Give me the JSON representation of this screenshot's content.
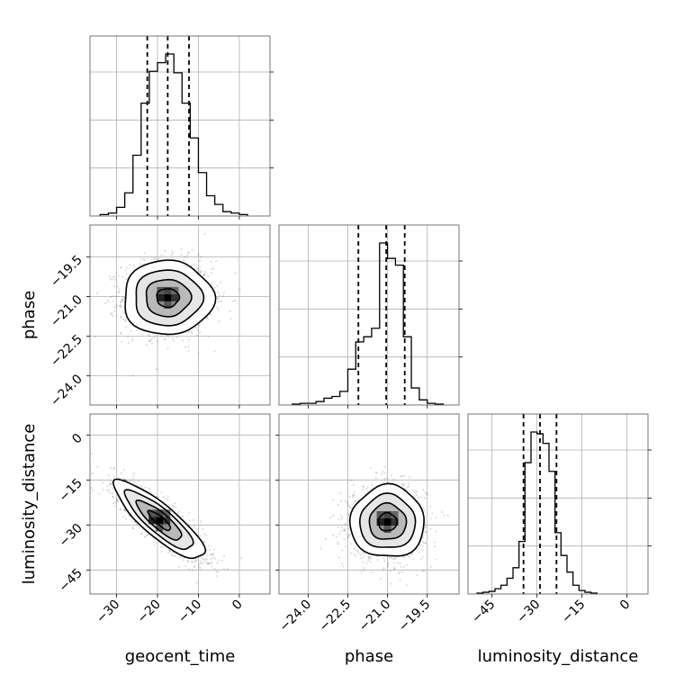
{
  "chart_data": {
    "type": "corner",
    "parameters": [
      "geocent_time",
      "phase",
      "luminosity_distance"
    ],
    "axis_labels": [
      "geocent_time",
      "phase",
      "luminosity_distance"
    ],
    "ranges": {
      "geocent_time": [
        -36.5,
        7.5
      ],
      "phase": [
        -25.1,
        -18.3
      ],
      "luminosity_distance": [
        -53,
        7
      ]
    },
    "ticks": {
      "geocent_time": [
        -30,
        -20,
        -10,
        0
      ],
      "phase": [
        -24.0,
        -22.5,
        -21.0,
        -19.5
      ],
      "luminosity_distance": [
        -45,
        -30,
        -15,
        0
      ]
    },
    "tick_labels": {
      "geocent_time": [
        "−30",
        "−20",
        "−10",
        "0"
      ],
      "phase": [
        "−24.0",
        "−22.5",
        "−21.0",
        "−19.5"
      ],
      "luminosity_distance": [
        "−45",
        "−30",
        "−15",
        "0"
      ]
    },
    "grid": true,
    "histograms": [
      {
        "parameter": "geocent_time",
        "bin_edges": [
          -34,
          -32,
          -30,
          -28,
          -26,
          -24,
          -22,
          -20,
          -18,
          -16,
          -14,
          -12,
          -10,
          -8,
          -6,
          -4,
          -2,
          0,
          2
        ],
        "counts": [
          1,
          2,
          6,
          16,
          42,
          78,
          100,
          106,
          112,
          99,
          78,
          54,
          30,
          14,
          8,
          3,
          2,
          1
        ],
        "quantiles": [
          -22.5,
          -17.5,
          -12.3
        ]
      },
      {
        "parameter": "phase",
        "bin_edges": [
          -24.6,
          -24.3,
          -24.0,
          -23.7,
          -23.4,
          -23.1,
          -22.8,
          -22.5,
          -22.2,
          -21.9,
          -21.6,
          -21.3,
          -21.0,
          -20.7,
          -20.4,
          -20.1,
          -19.8,
          -19.5,
          -19.2,
          -18.9
        ],
        "counts": [
          0.5,
          1,
          1,
          2,
          4,
          5,
          8,
          21,
          37,
          40,
          45,
          95,
          86,
          82,
          40,
          10,
          3,
          1,
          0.5
        ],
        "quantiles": [
          -22.1,
          -21.05,
          -20.35
        ]
      },
      {
        "parameter": "luminosity_distance",
        "bin_edges": [
          -50,
          -48,
          -46,
          -44,
          -42,
          -40,
          -38,
          -36,
          -34,
          -32,
          -30,
          -28,
          -26,
          -24,
          -22,
          -20,
          -18,
          -16,
          -14,
          -12,
          -10
        ],
        "counts": [
          1,
          2,
          3,
          6,
          10,
          18,
          30,
          60,
          150,
          185,
          183,
          172,
          140,
          70,
          44,
          25,
          10,
          4,
          2,
          1
        ],
        "quantiles": [
          -34.5,
          -29.0,
          -23.5
        ]
      }
    ],
    "pairs": [
      {
        "x": "geocent_time",
        "y": "phase",
        "center": [
          -17.5,
          -21.05
        ],
        "sigma": [
          5.5,
          0.7
        ],
        "correlation": 0
      },
      {
        "x": "geocent_time",
        "y": "luminosity_distance",
        "center": [
          -19.5,
          -28.5
        ],
        "sigma": [
          5.5,
          6.5
        ],
        "correlation": -0.85
      },
      {
        "x": "phase",
        "y": "luminosity_distance",
        "center": [
          -21.0,
          -29.0
        ],
        "sigma": [
          0.7,
          6.0
        ],
        "correlation": 0
      }
    ],
    "contour_levels": [
      0.5,
      1.0,
      1.5,
      2.0
    ]
  }
}
